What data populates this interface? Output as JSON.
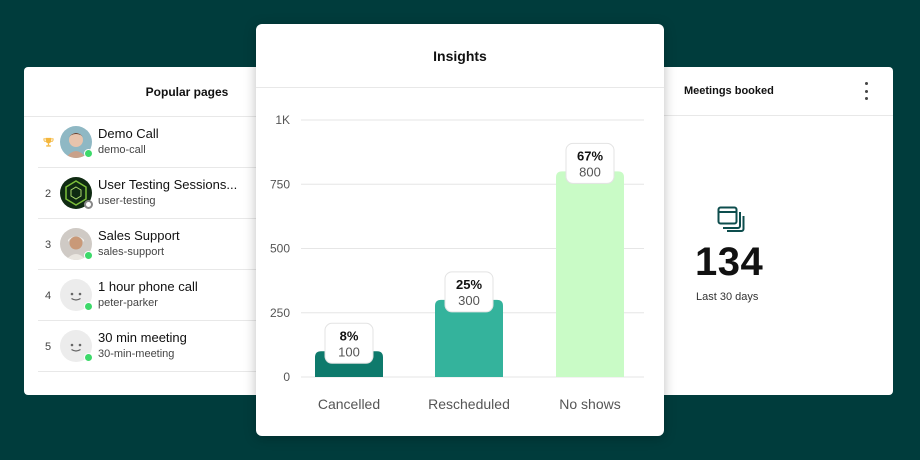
{
  "popular": {
    "title": "Popular pages",
    "items": [
      {
        "rank": "",
        "rank_icon": "trophy-icon",
        "name": "Demo Call",
        "slug": "demo-call",
        "status": "online"
      },
      {
        "rank": "2",
        "name": "User Testing Sessions...",
        "slug": "user-testing",
        "status": "offline"
      },
      {
        "rank": "3",
        "name": "Sales Support",
        "slug": "sales-support",
        "status": "online"
      },
      {
        "rank": "4",
        "name": "1 hour phone call",
        "slug": "peter-parker",
        "status": "online"
      },
      {
        "rank": "5",
        "name": "30 min meeting",
        "slug": "30-min-meeting",
        "status": "online"
      }
    ]
  },
  "meetings": {
    "title": "Meetings booked",
    "icon": "calendar-stack-icon",
    "value": "134",
    "period": "Last 30 days"
  },
  "insights": {
    "title": "Insights"
  },
  "chart_data": {
    "type": "bar",
    "categories": [
      "Cancelled",
      "Rescheduled",
      "No shows"
    ],
    "values": [
      100,
      300,
      800
    ],
    "percent_labels": [
      "8%",
      "25%",
      "67%"
    ],
    "value_labels": [
      "100",
      "300",
      "800"
    ],
    "bar_colors": [
      "#0e7a6c",
      "#34b39c",
      "#c9fbc6"
    ],
    "ylim": [
      0,
      1000
    ],
    "yticks": [
      0,
      250,
      500,
      750,
      1000
    ],
    "ytick_labels": [
      "0",
      "250",
      "500",
      "750",
      "1K"
    ],
    "grid": true
  }
}
